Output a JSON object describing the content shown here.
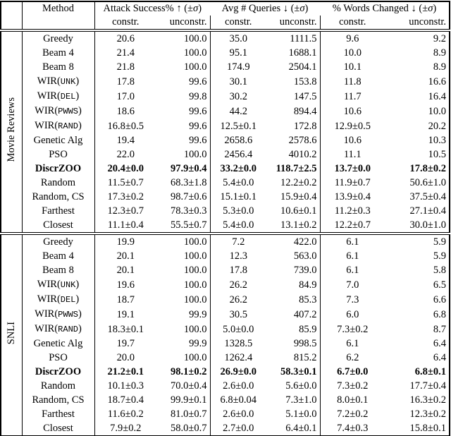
{
  "colors": {
    "text": "#000000",
    "background": "#ffffff",
    "rule": "#000000"
  },
  "table": {
    "header": {
      "method_label": "Method",
      "groups": [
        {
          "title": "Attack Success% ↑ (±σ)",
          "subcols": [
            "constr.",
            "unconstr."
          ]
        },
        {
          "title": "Avg # Queries ↓ (±σ)",
          "subcols": [
            "constr.",
            "unconstr."
          ]
        },
        {
          "title": "% Words Changed ↓ (±σ)",
          "subcols": [
            "constr.",
            "unconstr."
          ]
        }
      ]
    },
    "sections": [
      {
        "label": "Movie Reviews",
        "rows": [
          {
            "method": "Greedy",
            "values": [
              "20.6",
              "100.0",
              "35.0",
              "1111.5",
              "9.6",
              "9.2"
            ]
          },
          {
            "method": "Beam 4",
            "values": [
              "21.4",
              "100.0",
              "95.1",
              "1688.1",
              "10.0",
              "8.9"
            ]
          },
          {
            "method": "Beam 8",
            "values": [
              "21.8",
              "100.0",
              "174.9",
              "2504.1",
              "10.1",
              "8.9"
            ]
          },
          {
            "method": "WIR",
            "mono_arg": "UNK",
            "values": [
              "17.8",
              "99.6",
              "30.1",
              "153.8",
              "11.8",
              "16.6"
            ]
          },
          {
            "method": "WIR",
            "mono_arg": "DEL",
            "values": [
              "17.0",
              "99.8",
              "30.2",
              "147.5",
              "11.7",
              "16.4"
            ]
          },
          {
            "method": "WIR",
            "mono_arg": "PWWS",
            "values": [
              "18.6",
              "99.6",
              "44.2",
              "894.4",
              "10.6",
              "10.0"
            ]
          },
          {
            "method": "WIR",
            "mono_arg": "RAND",
            "values": [
              "16.8±0.5",
              "99.6",
              "12.5±0.1",
              "172.8",
              "12.9±0.5",
              "20.2"
            ]
          },
          {
            "method": "Genetic Alg",
            "values": [
              "19.4",
              "99.6",
              "2658.6",
              "2578.6",
              "10.6",
              "10.3"
            ]
          },
          {
            "method": "PSO",
            "values": [
              "22.0",
              "100.0",
              "2456.4",
              "4010.2",
              "11.1",
              "10.5"
            ]
          },
          {
            "method": "DiscrZOO",
            "bold": true,
            "values": [
              "20.4±0.0",
              "97.9±0.4",
              "33.2±0.0",
              "118.7±2.5",
              "13.7±0.0",
              "17.8±0.2"
            ]
          },
          {
            "method": "Random",
            "values": [
              "11.5±0.7",
              "68.3±1.8",
              "5.4±0.0",
              "12.2±0.2",
              "11.9±0.7",
              "50.6±1.0"
            ]
          },
          {
            "method": "Random, CS",
            "values": [
              "17.3±0.2",
              "98.7±0.6",
              "15.1±0.1",
              "15.9±0.4",
              "13.9±0.4",
              "37.5±0.4"
            ]
          },
          {
            "method": "Farthest",
            "values": [
              "12.3±0.7",
              "78.3±0.3",
              "5.3±0.0",
              "10.6±0.1",
              "11.2±0.3",
              "27.1±0.4"
            ]
          },
          {
            "method": "Closest",
            "values": [
              "11.1±0.4",
              "55.5±0.7",
              "5.4±0.0",
              "13.1±0.2",
              "12.2±0.7",
              "30.0±1.0"
            ]
          }
        ]
      },
      {
        "label": "SNLI",
        "rows": [
          {
            "method": "Greedy",
            "values": [
              "19.9",
              "100.0",
              "7.2",
              "422.0",
              "6.1",
              "5.9"
            ]
          },
          {
            "method": "Beam 4",
            "values": [
              "20.1",
              "100.0",
              "12.3",
              "563.0",
              "6.1",
              "5.9"
            ]
          },
          {
            "method": "Beam 8",
            "values": [
              "20.1",
              "100.0",
              "17.8",
              "739.0",
              "6.1",
              "5.8"
            ]
          },
          {
            "method": "WIR",
            "mono_arg": "UNK",
            "values": [
              "19.6",
              "100.0",
              "26.2",
              "84.9",
              "7.0",
              "6.5"
            ]
          },
          {
            "method": "WIR",
            "mono_arg": "DEL",
            "values": [
              "18.7",
              "100.0",
              "26.2",
              "85.3",
              "7.3",
              "6.6"
            ]
          },
          {
            "method": "WIR",
            "mono_arg": "PWWS",
            "values": [
              "19.1",
              "99.9",
              "30.5",
              "407.2",
              "6.0",
              "6.8"
            ]
          },
          {
            "method": "WIR",
            "mono_arg": "RAND",
            "values": [
              "18.3±0.1",
              "100.0",
              "5.0±0.0",
              "85.9",
              "7.3±0.2",
              "8.7"
            ]
          },
          {
            "method": "Genetic Alg",
            "values": [
              "19.7",
              "99.9",
              "1328.5",
              "998.5",
              "6.1",
              "6.4"
            ]
          },
          {
            "method": "PSO",
            "values": [
              "20.0",
              "100.0",
              "1262.4",
              "815.2",
              "6.2",
              "6.4"
            ]
          },
          {
            "method": "DiscrZOO",
            "bold": true,
            "values": [
              "21.2±0.1",
              "98.1±0.2",
              "26.9±0.0",
              "58.3±0.1",
              "6.7±0.0",
              "6.8±0.1"
            ]
          },
          {
            "method": "Random",
            "values": [
              "10.1±0.3",
              "70.0±0.4",
              "2.6±0.0",
              "5.6±0.0",
              "7.3±0.2",
              "17.7±0.4"
            ]
          },
          {
            "method": "Random, CS",
            "values": [
              "18.7±0.4",
              "99.9±0.1",
              "6.8±0.04",
              "7.3±1.0",
              "8.0±0.1",
              "16.3±0.2"
            ]
          },
          {
            "method": "Farthest",
            "values": [
              "11.6±0.2",
              "81.0±0.7",
              "2.6±0.0",
              "5.1±0.0",
              "7.2±0.2",
              "12.3±0.2"
            ]
          },
          {
            "method": "Closest",
            "values": [
              "7.9±0.2",
              "58.0±0.7",
              "2.7±0.0",
              "6.4±0.1",
              "7.4±0.3",
              "15.8±0.1"
            ]
          }
        ]
      }
    ]
  }
}
